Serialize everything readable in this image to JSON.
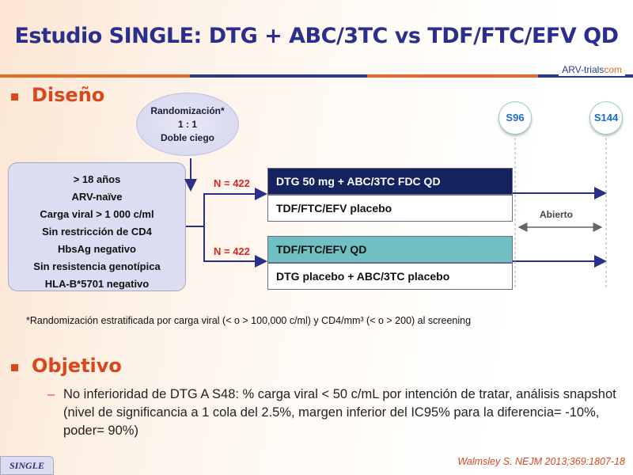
{
  "title": "Estudio SINGLE: DTG + ABC/3TC vs TDF/FTC/EFV QD",
  "logo": {
    "text": "ARV-trials",
    "suffix": "com"
  },
  "design": {
    "heading": "Diseño",
    "randomization": [
      "Randomización*",
      "1 : 1",
      "Doble ciego"
    ],
    "eligibility": [
      "> 18 años",
      "ARV-naïve",
      "Carga viral > 1 000 c/ml",
      "Sin restricción de CD4",
      "HbsAg negativo",
      "Sin resistencia  genotípica",
      "HLA-B*5701 negativo"
    ],
    "arms": [
      {
        "n": "N = 422",
        "drug": "DTG 50 mg + ABC/3TC FDC QD",
        "placebo": "TDF/FTC/EFV placebo",
        "color": "#14235e"
      },
      {
        "n": "N = 422",
        "drug": "TDF/FTC/EFV QD",
        "placebo": "DTG placebo + ABC/3TC placebo",
        "color": "#6fbfc3"
      }
    ],
    "timepoints": [
      "S96",
      "S144"
    ],
    "open_label": "Abierto"
  },
  "footnote": "*Randomización  estratificada por carga viral (< o > 100,000 c/ml) y CD4/mm³ (< o > 200) al screening",
  "objective": {
    "heading": "Objetivo",
    "text": "No inferioridad de DTG A S48: % carga viral < 50 c/mL por intención de tratar, análisis snapshot (nivel de significancia a 1 cola del  2.5%, margen inferior del IC95% para la diferencia= -10%, poder= 90%)"
  },
  "tag": "SINGLE",
  "citation": "Walmsley S. NEJM 2013;369:1807-18"
}
